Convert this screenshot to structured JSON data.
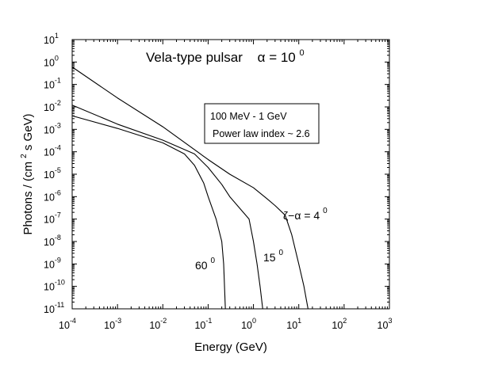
{
  "chart_data": {
    "type": "line",
    "title": "Vela-type pulsar",
    "title_param": {
      "symbol": "α = 10",
      "exp": "0"
    },
    "xlabel": "Energy (GeV)",
    "ylabel": {
      "pre": "Photons / (cm",
      "exp": "2",
      "post": " s GeV)"
    },
    "x_scale": "log",
    "y_scale": "log",
    "xlim": [
      0.0001,
      1000
    ],
    "ylim": [
      1e-11,
      10
    ],
    "x_ticks": [
      {
        "base": "10",
        "exp": "-4",
        "value": 0.0001
      },
      {
        "base": "10",
        "exp": "-3",
        "value": 0.001
      },
      {
        "base": "10",
        "exp": "-2",
        "value": 0.01
      },
      {
        "base": "10",
        "exp": "-1",
        "value": 0.1
      },
      {
        "base": "10",
        "exp": "0",
        "value": 1
      },
      {
        "base": "10",
        "exp": "1",
        "value": 10
      },
      {
        "base": "10",
        "exp": "2",
        "value": 100
      },
      {
        "base": "10",
        "exp": "3",
        "value": 1000
      }
    ],
    "y_ticks": [
      {
        "base": "10",
        "exp": "1",
        "value": 10
      },
      {
        "base": "10",
        "exp": "0",
        "value": 1
      },
      {
        "base": "10",
        "exp": "-1",
        "value": 0.1
      },
      {
        "base": "10",
        "exp": "-2",
        "value": 0.01
      },
      {
        "base": "10",
        "exp": "-3",
        "value": 0.001
      },
      {
        "base": "10",
        "exp": "-4",
        "value": 0.0001
      },
      {
        "base": "10",
        "exp": "-5",
        "value": 1e-05
      },
      {
        "base": "10",
        "exp": "-6",
        "value": 1e-06
      },
      {
        "base": "10",
        "exp": "-7",
        "value": 1e-07
      },
      {
        "base": "10",
        "exp": "-8",
        "value": 1e-08
      },
      {
        "base": "10",
        "exp": "-9",
        "value": 1e-09
      },
      {
        "base": "10",
        "exp": "-10",
        "value": 1e-10
      },
      {
        "base": "10",
        "exp": "-11",
        "value": 1e-11
      }
    ],
    "legend_box": {
      "line1": "100 MeV - 1 GeV",
      "line2": "Power law index  ~ 2.6",
      "placement": "upper-center"
    },
    "series": [
      {
        "name": "ζ−α = 4",
        "label": {
          "text": "ζ−α  = 4",
          "exp": "0"
        },
        "x": [
          0.0001,
          0.001,
          0.01,
          0.1,
          0.3,
          1,
          2,
          3,
          5,
          7,
          10,
          13,
          16
        ],
        "y": [
          0.6,
          0.025,
          0.0013,
          4.5e-05,
          1e-05,
          2.5e-06,
          8e-07,
          4e-07,
          1.5e-07,
          2e-08,
          1e-09,
          1e-10,
          1e-11
        ]
      },
      {
        "name": "15",
        "label": {
          "text": "15",
          "exp": "0"
        },
        "x": [
          0.0001,
          0.001,
          0.01,
          0.05,
          0.1,
          0.2,
          0.3,
          0.5,
          0.8,
          1.0,
          1.2,
          1.4,
          1.6
        ],
        "y": [
          0.012,
          0.0017,
          0.00033,
          8e-05,
          2e-05,
          3.5e-06,
          1e-06,
          3e-07,
          1e-07,
          1e-08,
          1e-09,
          1e-10,
          1e-11
        ]
      },
      {
        "name": "60",
        "label": {
          "text": "60",
          "exp": "0"
        },
        "x": [
          0.0001,
          0.001,
          0.01,
          0.03,
          0.05,
          0.08,
          0.1,
          0.15,
          0.2,
          0.22,
          0.24
        ],
        "y": [
          0.004,
          0.0011,
          0.00025,
          8e-05,
          2.5e-05,
          4e-06,
          1e-06,
          1e-07,
          1e-08,
          1e-09,
          1e-11
        ]
      }
    ],
    "grid": false
  }
}
